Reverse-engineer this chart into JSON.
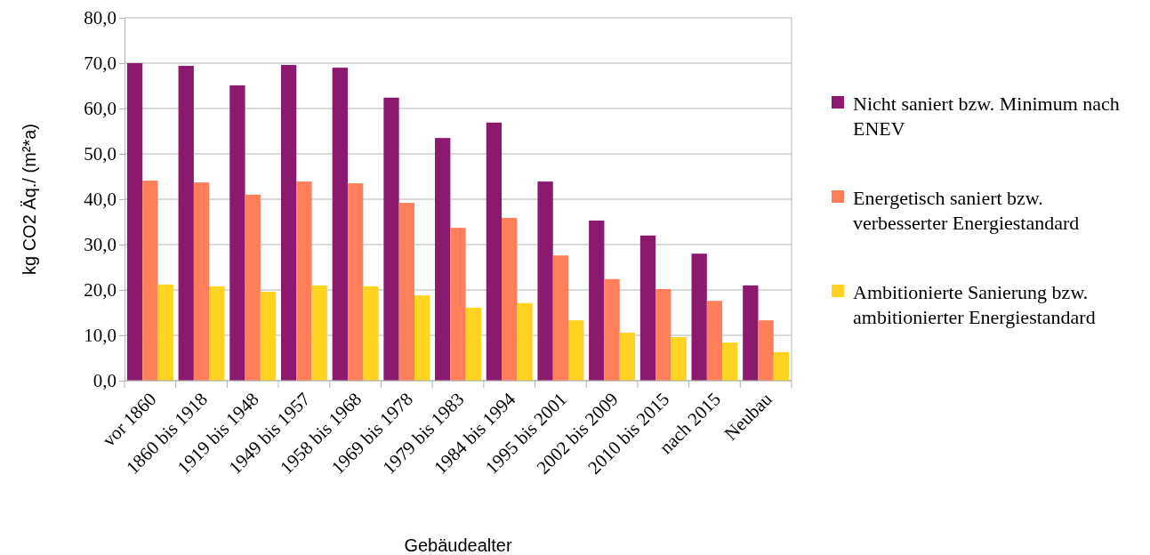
{
  "chart_data": {
    "type": "bar",
    "xlabel": "Gebäudealter",
    "ylabel": "kg CO2 Äq./ (m²*a)",
    "categories": [
      "vor 1860",
      "1860 bis 1918",
      "1919 bis 1948",
      "1949 bis 1957",
      "1958 bis 1968",
      "1969 bis 1978",
      "1979 bis 1983",
      "1984 bis 1994",
      "1995 bis 2001",
      "2002 bis 2009",
      "2010 bis 2015",
      "nach 2015",
      "Neubau"
    ],
    "series": [
      {
        "name": "Nicht saniert bzw. Minimum nach ENEV",
        "color": "#8b1a6f",
        "values": [
          70.0,
          69.4,
          65.1,
          69.6,
          69.0,
          62.4,
          53.5,
          56.9,
          43.9,
          35.3,
          32.0,
          28.0,
          21.0
        ]
      },
      {
        "name": "Energetisch saniert bzw. verbesserter Energiestandard",
        "color": "#ff7f5a",
        "values": [
          44.1,
          43.7,
          41.0,
          43.9,
          43.5,
          39.2,
          33.7,
          35.9,
          27.6,
          22.4,
          20.2,
          17.6,
          13.3
        ]
      },
      {
        "name": "Ambitionierte Sanierung bzw. ambitionierter Energiestandard",
        "color": "#ffd320",
        "values": [
          21.2,
          20.8,
          19.6,
          21.0,
          20.8,
          18.8,
          16.1,
          17.1,
          13.3,
          10.6,
          9.6,
          8.4,
          6.3
        ]
      }
    ],
    "ylim": [
      0,
      80
    ],
    "yticks": [
      {
        "value": 0,
        "label": "0,0"
      },
      {
        "value": 10,
        "label": "10,0"
      },
      {
        "value": 20,
        "label": "20,0"
      },
      {
        "value": 30,
        "label": "30,0"
      },
      {
        "value": 40,
        "label": "40,0"
      },
      {
        "value": 50,
        "label": "50,0"
      },
      {
        "value": 60,
        "label": "60,0"
      },
      {
        "value": 70,
        "label": "70,0"
      },
      {
        "value": 80,
        "label": "80,0"
      }
    ],
    "grid": "y",
    "legend": "right"
  }
}
